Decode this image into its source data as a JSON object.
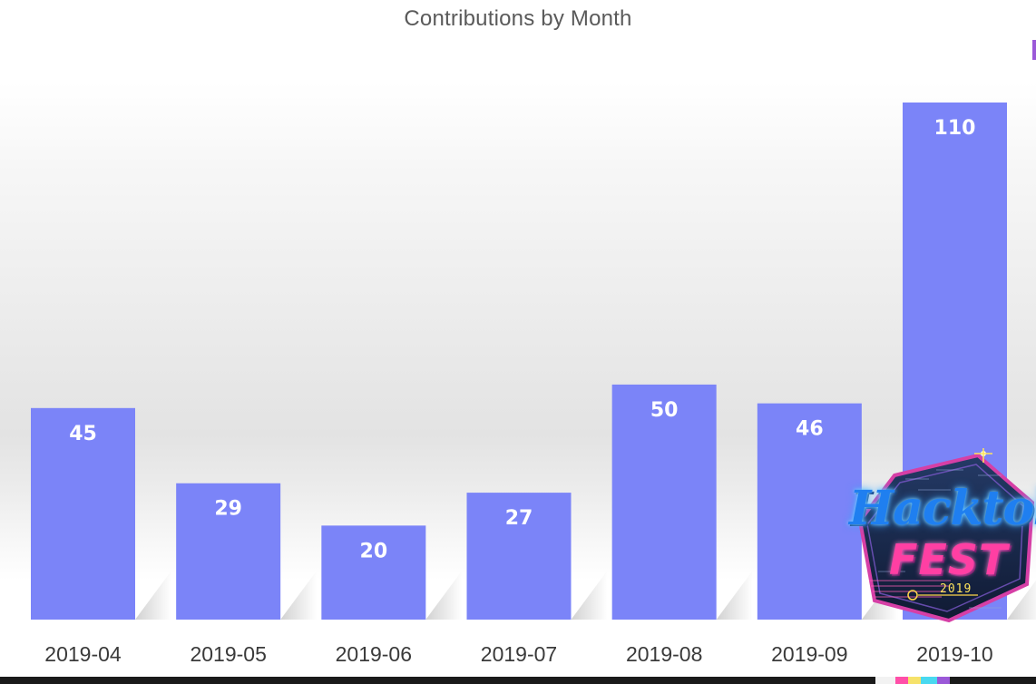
{
  "chart_data": {
    "type": "bar",
    "title": "Contributions by Month",
    "categories": [
      "2019-04",
      "2019-05",
      "2019-06",
      "2019-07",
      "2019-08",
      "2019-09",
      "2019-10"
    ],
    "values": [
      45,
      29,
      20,
      27,
      50,
      46,
      110
    ],
    "xlabel": "",
    "ylabel": "",
    "ylim": [
      0,
      110
    ],
    "grid": false,
    "legend": "none",
    "data_labels": true,
    "bar_color": "#7b84f8",
    "label_color": "#ffffff"
  },
  "badge": {
    "word": "Hacktober",
    "fest": "FEST",
    "year": "2019"
  },
  "colors": {
    "title": "#5a5a5a",
    "tick_label": "#3a3a3a",
    "badge_bg": "#1a2a4a",
    "badge_border": "#d63fa6",
    "badge_accent": "#ffd54a"
  }
}
